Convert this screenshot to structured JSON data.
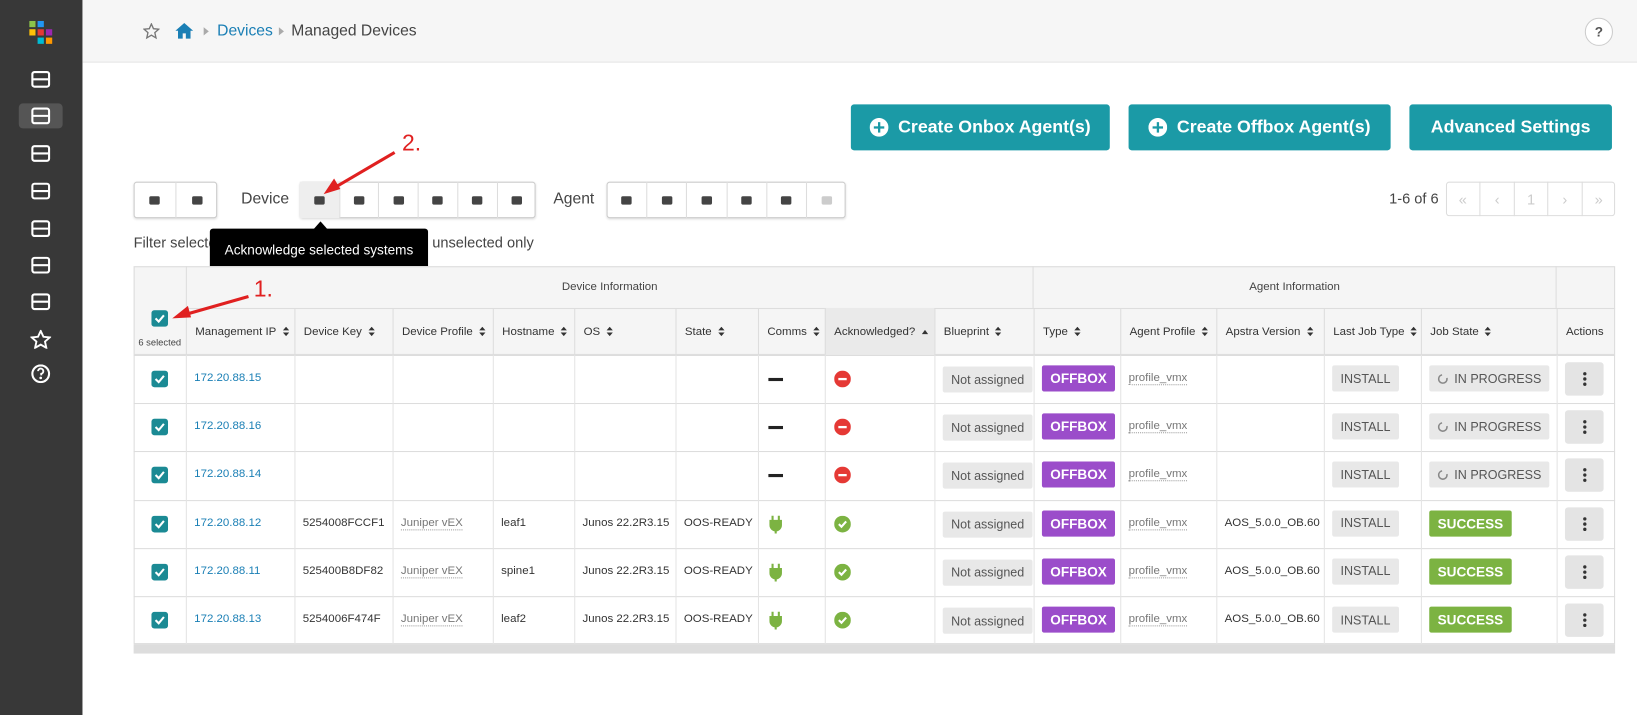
{
  "breadcrumb": {
    "parent": "Devices",
    "current": "Managed Devices"
  },
  "help": "?",
  "buttons": [
    "Create Onbox Agent(s)",
    "Create Offbox Agent(s)",
    "Advanced Settings"
  ],
  "toolbar": {
    "device_label": "Device",
    "agent_label": "Agent"
  },
  "tooltip": "Acknowledge selected systems",
  "filter": {
    "selected": "Filter selected",
    "unselected": "unselected only"
  },
  "pagination": {
    "summary": "1-6 of 6",
    "controls": [
      "«",
      "‹",
      "1",
      "›",
      "»"
    ]
  },
  "annotations": [
    "1.",
    "2."
  ],
  "table": {
    "groups": [
      "Device Information",
      "Agent Information"
    ],
    "selected_count": "6 selected",
    "columns": [
      "Management IP",
      "Device Key",
      "Device Profile",
      "Hostname",
      "OS",
      "State",
      "Comms",
      "Acknowledged?",
      "Blueprint",
      "Type",
      "Agent Profile",
      "Apstra Version",
      "Last Job Type",
      "Job State",
      "Actions"
    ],
    "rows": [
      [
        "172.20.88.15",
        null,
        null,
        null,
        null,
        null,
        "Not assigned",
        "OFFBOX",
        "profile_vmx",
        null,
        "INSTALL",
        "IN PROGRESS"
      ],
      [
        "172.20.88.16",
        null,
        null,
        null,
        null,
        null,
        "Not assigned",
        "OFFBOX",
        "profile_vmx",
        null,
        "INSTALL",
        "IN PROGRESS"
      ],
      [
        "172.20.88.14",
        null,
        null,
        null,
        null,
        null,
        "Not assigned",
        "OFFBOX",
        "profile_vmx",
        null,
        "INSTALL",
        "IN PROGRESS"
      ],
      [
        "172.20.88.12",
        "5254008FCCF1",
        "Juniper vEX",
        "leaf1",
        "Junos 22.2R3.15",
        "OOS-READY",
        "Not assigned",
        "OFFBOX",
        "profile_vmx",
        "AOS_5.0.0_OB.60",
        "INSTALL",
        "SUCCESS"
      ],
      [
        "172.20.88.11",
        "525400B8DF82",
        "Juniper vEX",
        "spine1",
        "Junos 22.2R3.15",
        "OOS-READY",
        "Not assigned",
        "OFFBOX",
        "profile_vmx",
        "AOS_5.0.0_OB.60",
        "INSTALL",
        "SUCCESS"
      ],
      [
        "172.20.88.13",
        "5254006F474F",
        "Juniper vEX",
        "leaf2",
        "Junos 22.2R3.15",
        "OOS-READY",
        "Not assigned",
        "OFFBOX",
        "profile_vmx",
        "AOS_5.0.0_OB.60",
        "INSTALL",
        "SUCCESS"
      ]
    ]
  }
}
